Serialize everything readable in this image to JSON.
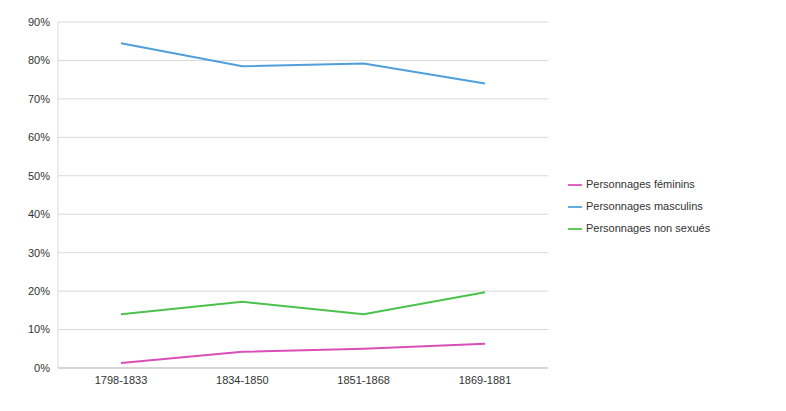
{
  "chart_data": {
    "type": "line",
    "categories": [
      "1798-1833",
      "1834-1850",
      "1851-1868",
      "1869-1881"
    ],
    "series": [
      {
        "name": "Personnages féminins",
        "color": "#d94fb5",
        "values": [
          1.3,
          4.2,
          5.0,
          6.3
        ]
      },
      {
        "name": "Personnages masculins",
        "color": "#4f9fdc",
        "values": [
          84.5,
          78.5,
          79.2,
          74.0
        ]
      },
      {
        "name": "Personnages non sexués",
        "color": "#4cc24c",
        "values": [
          14.0,
          17.2,
          14.0,
          19.7
        ]
      }
    ],
    "ylim": [
      0,
      90
    ],
    "yticks": [
      {
        "value": 0,
        "label": "0%"
      },
      {
        "value": 10,
        "label": "10%"
      },
      {
        "value": 20,
        "label": "20%"
      },
      {
        "value": 30,
        "label": "30%"
      },
      {
        "value": 40,
        "label": "40%"
      },
      {
        "value": 50,
        "label": "50%"
      },
      {
        "value": 60,
        "label": "60%"
      },
      {
        "value": 70,
        "label": "70%"
      },
      {
        "value": 80,
        "label": "80%"
      },
      {
        "value": 90,
        "label": "90%"
      }
    ],
    "grid": true,
    "legend": "right"
  }
}
